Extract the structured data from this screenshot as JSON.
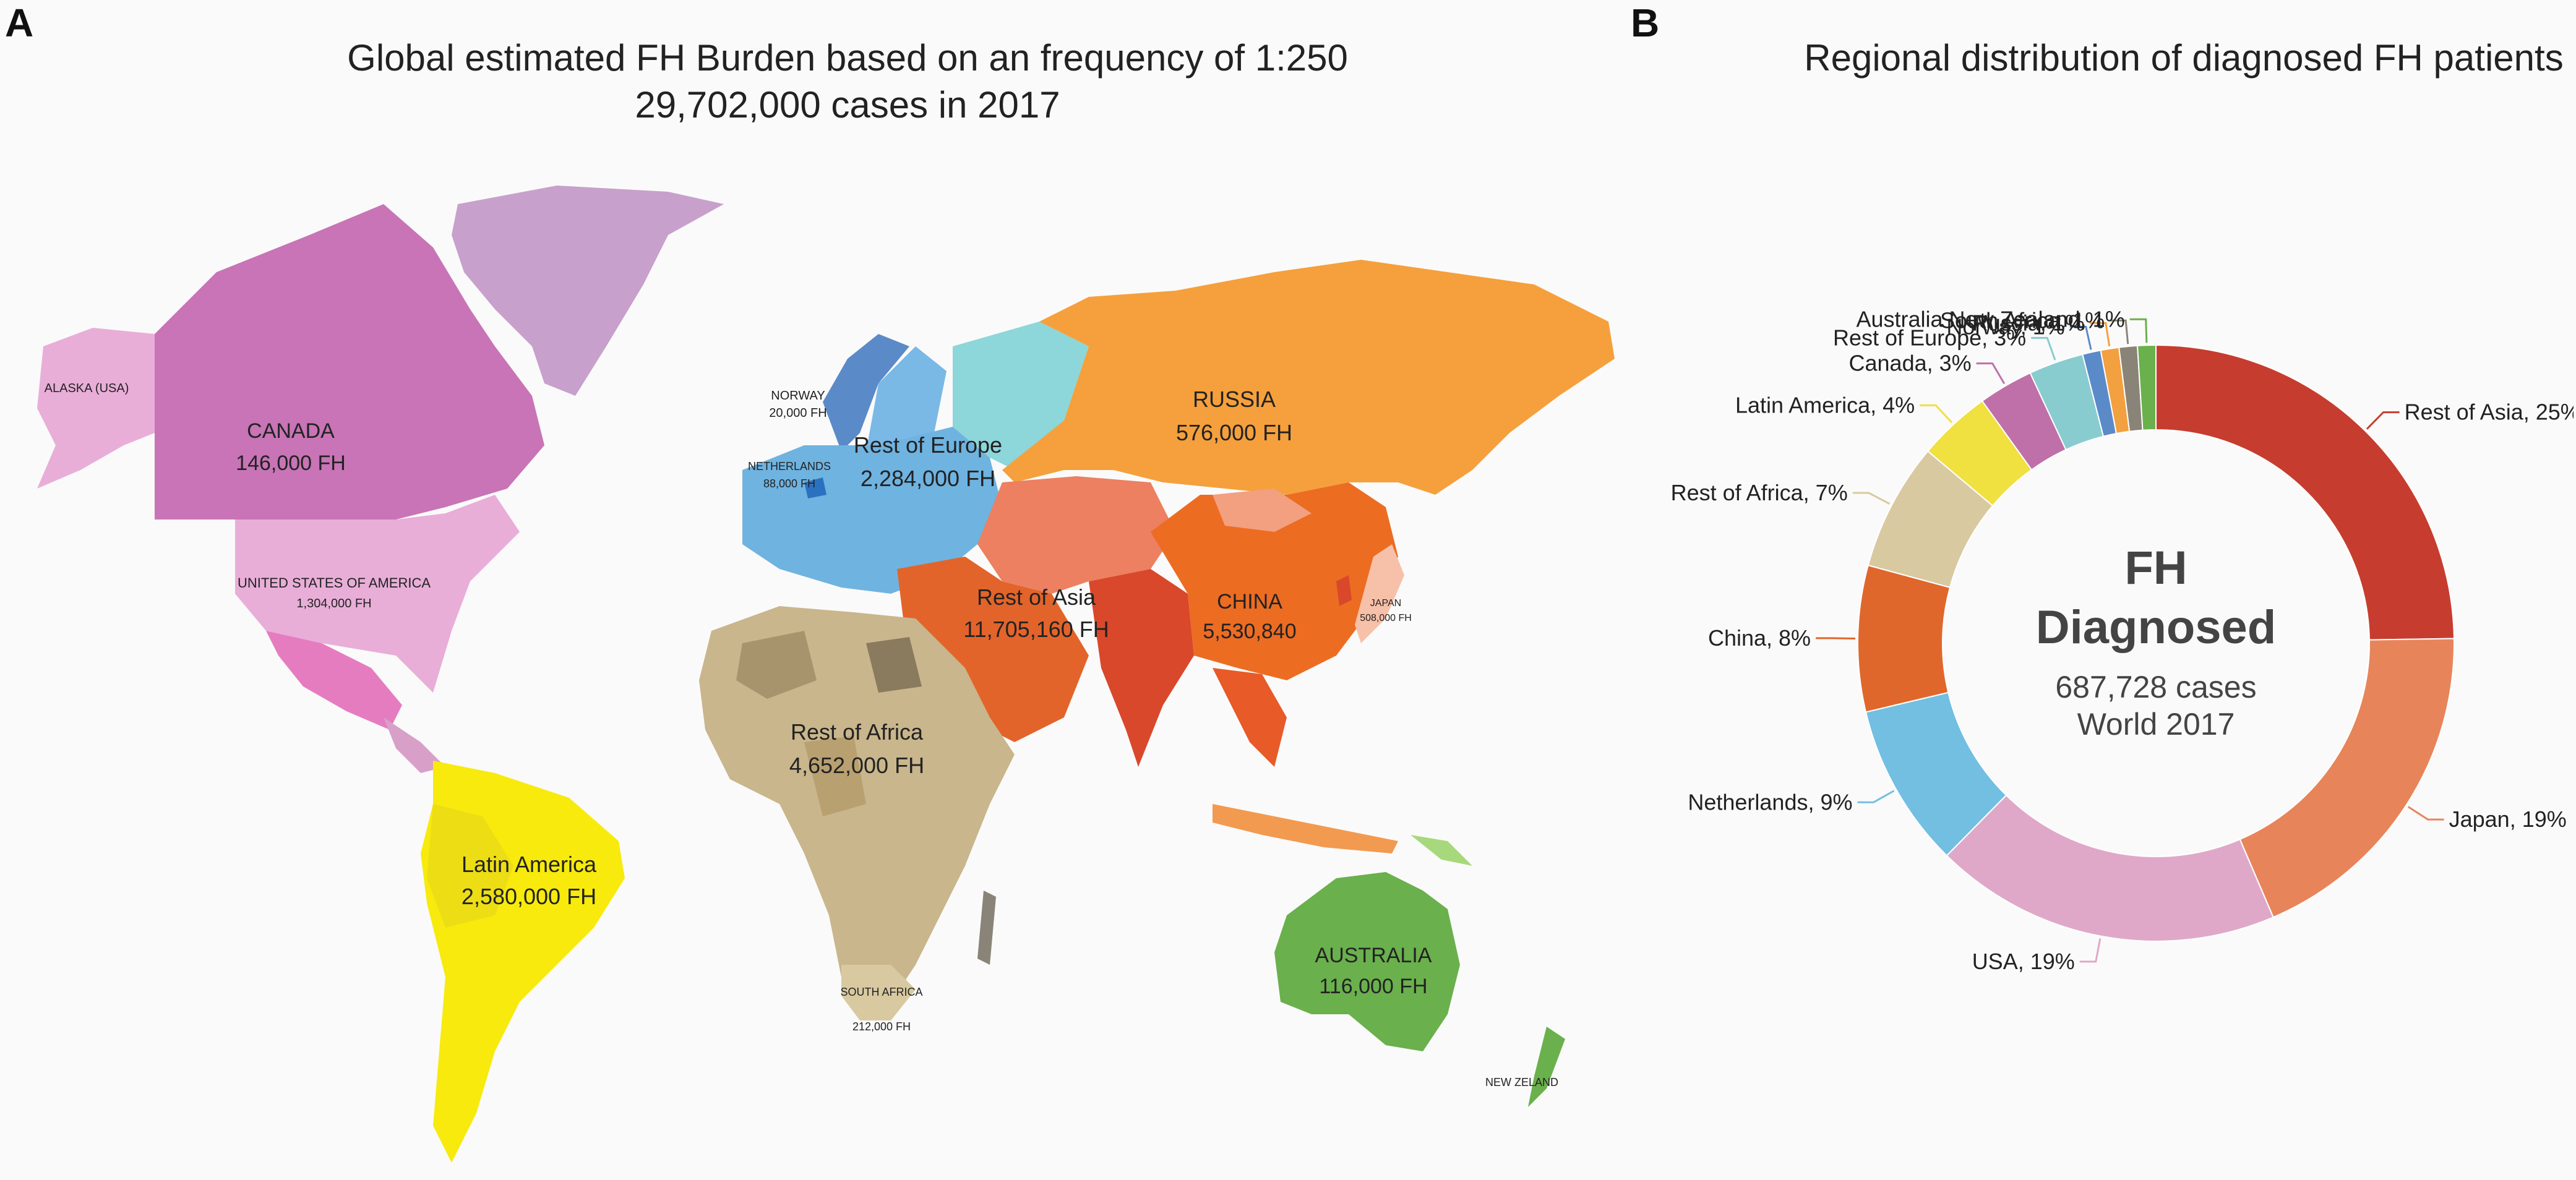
{
  "panel_a": {
    "letter": "A",
    "title_line1": "Global estimated FH Burden based on an frequency of 1:250",
    "title_line2": "29,702,000 cases in 2017",
    "regions": [
      {
        "name": "ALASKA (USA)",
        "value": ""
      },
      {
        "name": "CANADA",
        "value": "146,000 FH"
      },
      {
        "name": "UNITED STATES OF AMERICA",
        "value": "1,304,000 FH"
      },
      {
        "name": "Latin America",
        "value": "2,580,000 FH"
      },
      {
        "name": "NORWAY",
        "value": "20,000 FH"
      },
      {
        "name": "NETHERLANDS",
        "value": "88,000 FH"
      },
      {
        "name": "Rest of Europe",
        "value": "2,284,000 FH"
      },
      {
        "name": "RUSSIA",
        "value": "576,000 FH"
      },
      {
        "name": "Rest of Asia",
        "value": "11,705,160 FH"
      },
      {
        "name": "CHINA",
        "value": "5,530,840"
      },
      {
        "name": "JAPAN",
        "value": "508,000 FH"
      },
      {
        "name": "Rest of Africa",
        "value": "4,652,000 FH"
      },
      {
        "name": "SOUTH AFRICA",
        "value": "212,000 FH"
      },
      {
        "name": "AUSTRALIA",
        "value": "116,000 FH"
      },
      {
        "name": "NEW ZELAND",
        "value": ""
      }
    ]
  },
  "panel_b": {
    "letter": "B",
    "title": "Regional distribution of diagnosed FH patients",
    "center_line1": "FH",
    "center_line2": "Diagnosed",
    "center_line3": "687,728 cases",
    "center_line4": "World 2017"
  },
  "chart_data": {
    "type": "pie",
    "variant": "donut",
    "title": "Regional distribution of diagnosed FH patients",
    "slices": [
      {
        "label": "Rest of Asia",
        "value": 25,
        "display": "25%",
        "color": "#c63d2f"
      },
      {
        "label": "Japan",
        "value": 19,
        "display": "19%",
        "color": "#e8845a"
      },
      {
        "label": "USA",
        "value": 19,
        "display": "19%",
        "color": "#e0a8c8"
      },
      {
        "label": "Netherlands",
        "value": 9,
        "display": "9%",
        "color": "#72bfe2"
      },
      {
        "label": "China",
        "value": 8,
        "display": "8%",
        "color": "#e0672c"
      },
      {
        "label": "Rest of Africa",
        "value": 7,
        "display": "7%",
        "color": "#d8c9a0"
      },
      {
        "label": "Latin America",
        "value": 4,
        "display": "4%",
        "color": "#f0e040"
      },
      {
        "label": "Canada",
        "value": 3,
        "display": "3%",
        "color": "#c070a8"
      },
      {
        "label": "Rest of Europe",
        "value": 3,
        "display": "3%",
        "color": "#88ccd0"
      },
      {
        "label": "Norway",
        "value": 1,
        "display": "1%",
        "color": "#5b8ac8"
      },
      {
        "label": "Russia",
        "value": 1,
        "display": "1%",
        "color": "#f3a040"
      },
      {
        "label": "South Africa",
        "value": 1,
        "display": "1%",
        "color": "#8a8478"
      },
      {
        "label": "Australia New Zealand",
        "value": 1,
        "display": "1%",
        "color": "#6ab04c"
      }
    ]
  }
}
